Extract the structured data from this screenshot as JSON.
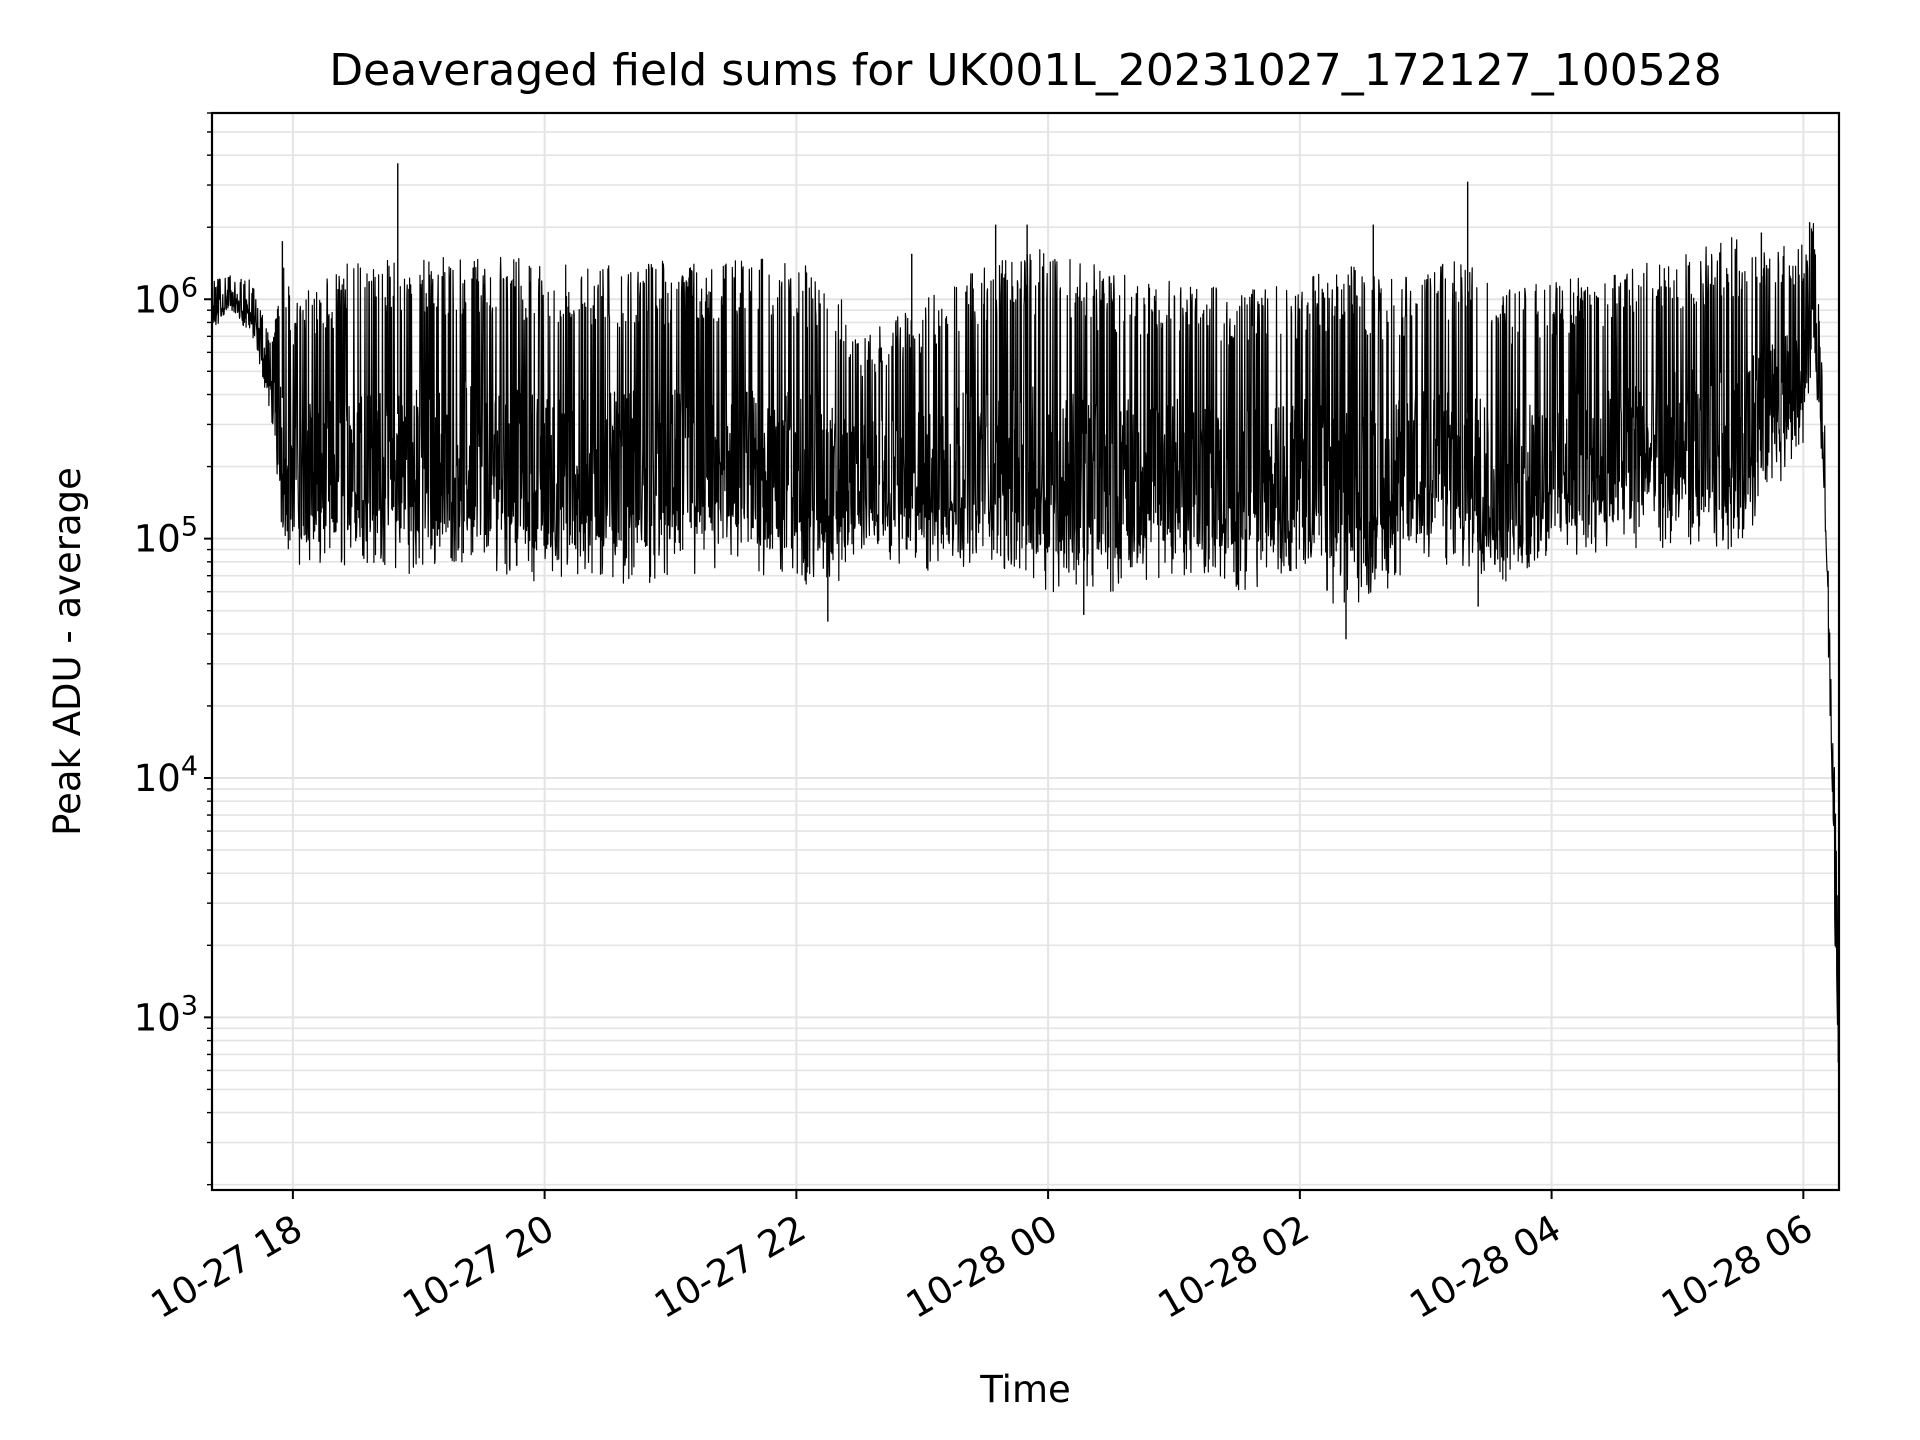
{
  "chart_data": {
    "type": "line",
    "title": "Deaveraged field sums for UK001L_20231027_172127_100528",
    "xlabel": "Time",
    "ylabel": "Peak ADU - average",
    "y_scale": "log",
    "ylim": [
      190,
      6000000
    ],
    "xlim": [
      "2023-10-27 17:21:27",
      "2023-10-28 06:17:00"
    ],
    "grid": true,
    "x_ticks": [
      {
        "value": "2023-10-27 18:00",
        "label": "10-27 18"
      },
      {
        "value": "2023-10-27 20:00",
        "label": "10-27 20"
      },
      {
        "value": "2023-10-27 22:00",
        "label": "10-27 22"
      },
      {
        "value": "2023-10-28 00:00",
        "label": "10-28 00"
      },
      {
        "value": "2023-10-28 02:00",
        "label": "10-28 02"
      },
      {
        "value": "2023-10-28 04:00",
        "label": "10-28 04"
      },
      {
        "value": "2023-10-28 06:00",
        "label": "10-28 06"
      }
    ],
    "y_ticks": [
      {
        "value": 1000,
        "base": "10",
        "exp": "3"
      },
      {
        "value": 10000,
        "base": "10",
        "exp": "4"
      },
      {
        "value": 100000,
        "base": "10",
        "exp": "5"
      },
      {
        "value": 1000000,
        "base": "10",
        "exp": "6"
      }
    ],
    "series": [
      {
        "line_color": "#000000",
        "x": [
          "2023-10-27 17:21:27",
          "2023-10-27 17:30",
          "2023-10-27 17:40",
          "2023-10-27 17:45",
          "2023-10-27 17:50",
          "2023-10-27 17:55",
          "2023-10-27 18:00",
          "2023-10-27 18:15",
          "2023-10-27 18:30",
          "2023-10-27 18:45",
          "2023-10-27 19:00",
          "2023-10-27 19:15",
          "2023-10-27 19:30",
          "2023-10-27 19:45",
          "2023-10-27 20:00",
          "2023-10-27 20:30",
          "2023-10-27 21:00",
          "2023-10-27 21:30",
          "2023-10-27 22:00",
          "2023-10-27 22:20",
          "2023-10-27 22:30",
          "2023-10-27 23:00",
          "2023-10-27 23:30",
          "2023-10-28 00:00",
          "2023-10-28 00:30",
          "2023-10-28 01:00",
          "2023-10-28 01:30",
          "2023-10-28 02:00",
          "2023-10-28 02:20",
          "2023-10-28 02:40",
          "2023-10-28 03:00",
          "2023-10-28 03:20",
          "2023-10-28 03:40",
          "2023-10-28 04:00",
          "2023-10-28 04:30",
          "2023-10-28 05:00",
          "2023-10-28 05:30",
          "2023-10-28 06:00",
          "2023-10-28 06:05",
          "2023-10-28 06:10",
          "2023-10-28 06:13",
          "2023-10-28 06:15",
          "2023-10-28 06:17"
        ],
        "low": [
          700000,
          900000,
          700000,
          500000,
          300000,
          100000,
          80000,
          70000,
          80000,
          75000,
          70000,
          80000,
          75000,
          70000,
          65000,
          65000,
          65000,
          70000,
          65000,
          60000,
          90000,
          70000,
          80000,
          60000,
          60000,
          70000,
          60000,
          70000,
          50000,
          60000,
          80000,
          70000,
          60000,
          80000,
          90000,
          90000,
          90000,
          250000,
          600000,
          150000,
          15000,
          2000,
          500
        ],
        "high": [
          1200000,
          1300000,
          1200000,
          900000,
          700000,
          1500000,
          1000000,
          1200000,
          1500000,
          1500000,
          1500000,
          1500000,
          1500000,
          1500000,
          1450000,
          1400000,
          1450000,
          1450000,
          1500000,
          1200000,
          700000,
          1000000,
          1400000,
          1700000,
          1300000,
          1200000,
          1100000,
          1200000,
          1500000,
          1200000,
          1300000,
          1600000,
          1100000,
          1200000,
          1300000,
          1600000,
          1850000,
          1700000,
          2100000,
          350000,
          30000,
          10000,
          2500
        ],
        "spikes": [
          {
            "x": "2023-10-27 17:55",
            "y": 1750000
          },
          {
            "x": "2023-10-27 18:50",
            "y": 3700000
          },
          {
            "x": "2023-10-27 22:55",
            "y": 1550000
          },
          {
            "x": "2023-10-27 23:35",
            "y": 2050000
          },
          {
            "x": "2023-10-27 23:50",
            "y": 2050000
          },
          {
            "x": "2023-10-28 02:35",
            "y": 2050000
          },
          {
            "x": "2023-10-28 02:22",
            "y": 38000
          },
          {
            "x": "2023-10-28 03:20",
            "y": 3100000
          },
          {
            "x": "2023-10-28 03:25",
            "y": 52000
          },
          {
            "x": "2023-10-28 05:40",
            "y": 1900000
          },
          {
            "x": "2023-10-28 06:03",
            "y": 2100000
          },
          {
            "x": "2023-10-27 22:15",
            "y": 45000
          },
          {
            "x": "2023-10-28 00:17",
            "y": 48000
          }
        ]
      }
    ]
  }
}
